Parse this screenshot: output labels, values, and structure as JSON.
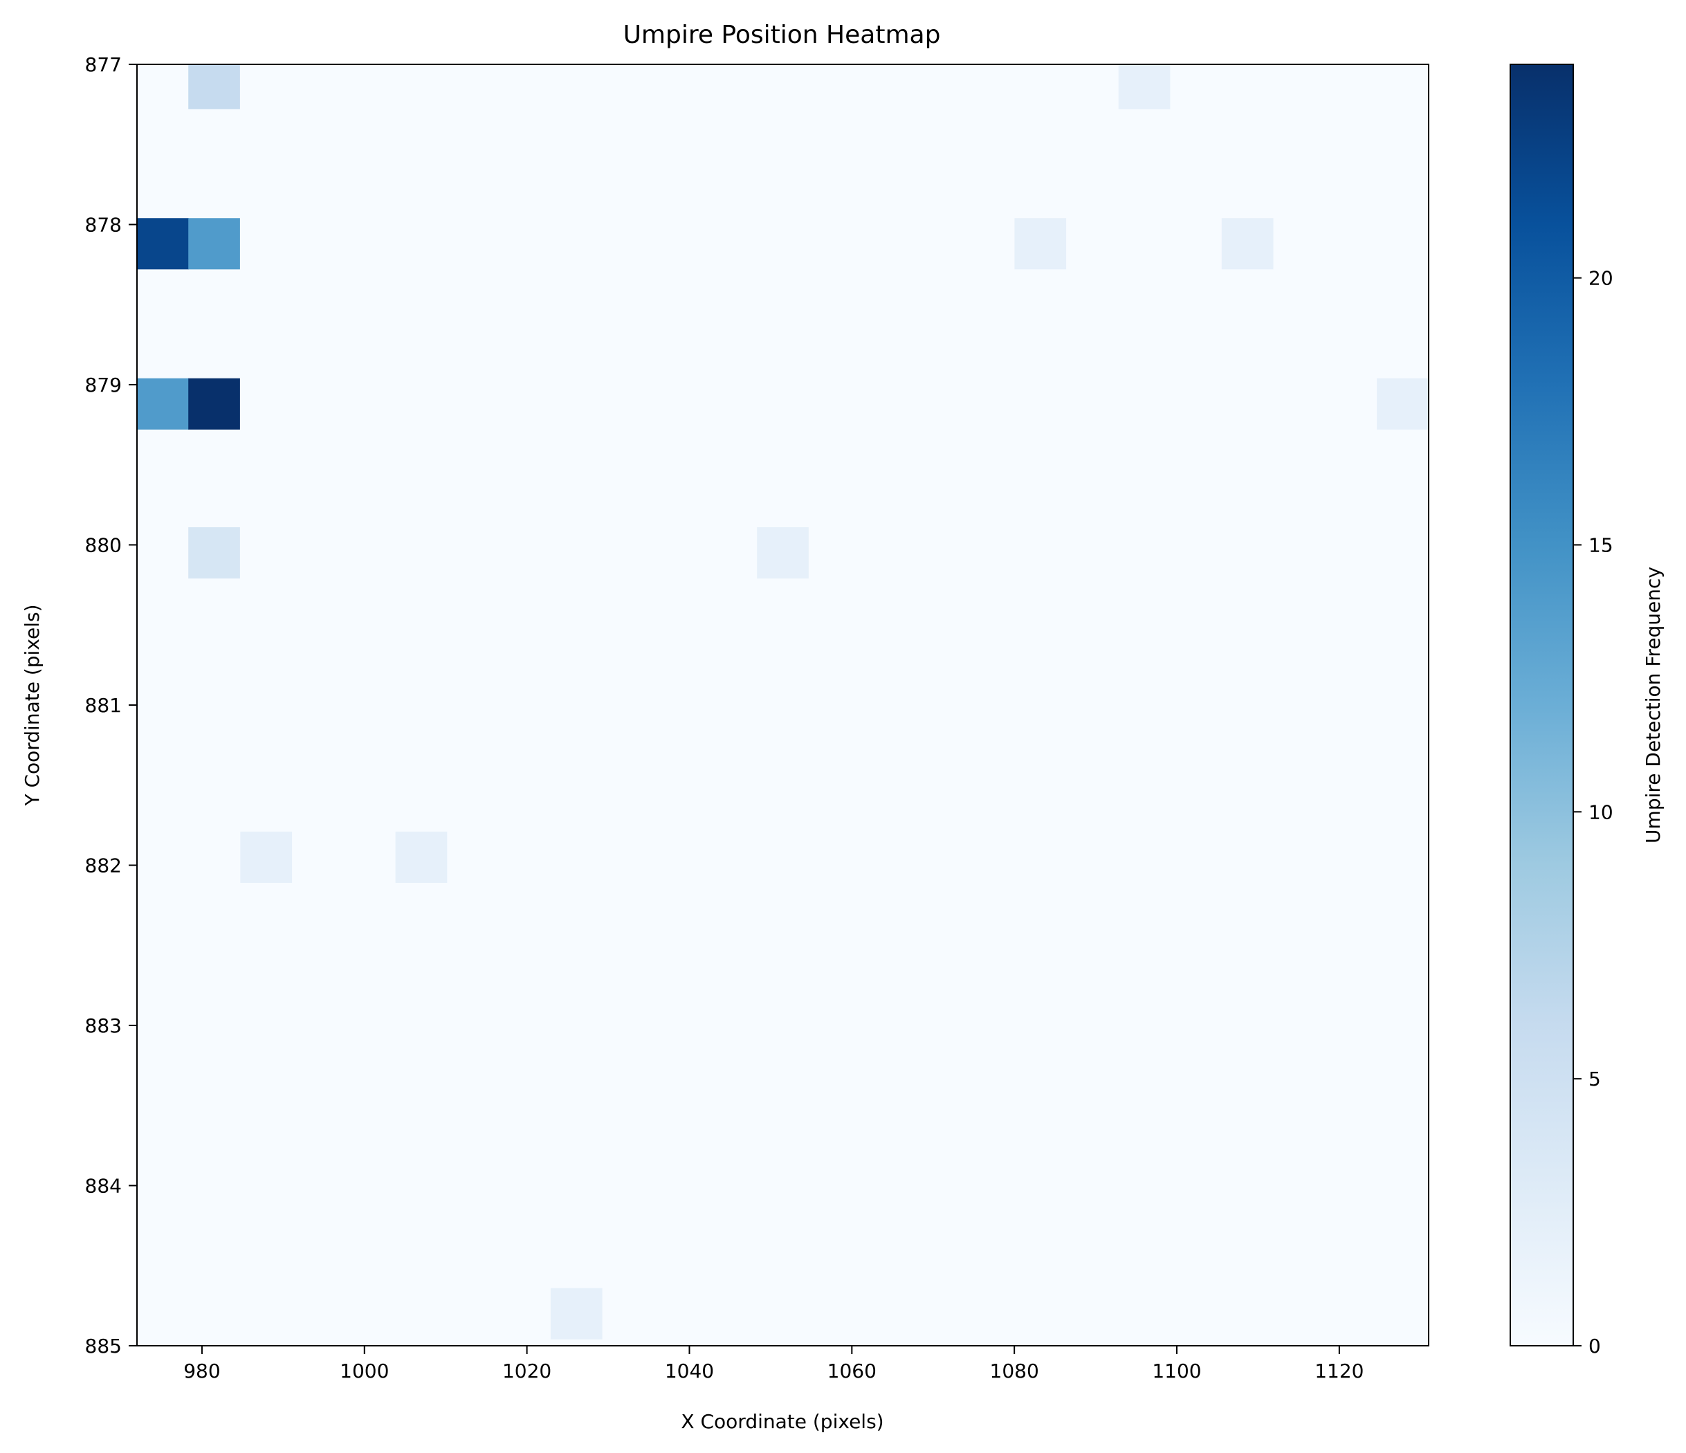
{
  "chart_data": {
    "type": "heatmap",
    "title": "Umpire Position Heatmap",
    "xlabel": "X Coordinate (pixels)",
    "ylabel": "Y Coordinate (pixels)",
    "colorbar_label": "Umpire Detection Frequency",
    "colormap": "Blues",
    "xlim": [
      972,
      1131
    ],
    "ylim": [
      877,
      885
    ],
    "x_ticks": [
      980,
      1000,
      1020,
      1040,
      1060,
      1080,
      1100,
      1120
    ],
    "y_ticks": [
      877,
      878,
      879,
      880,
      881,
      882,
      883,
      884,
      885
    ],
    "colorbar_range": [
      0,
      24
    ],
    "colorbar_ticks": [
      0,
      5,
      10,
      15,
      20
    ],
    "cell_width": 6.36,
    "cell_height": 0.32,
    "cells": [
      {
        "x": 981.5,
        "y": 877.12,
        "value": 6
      },
      {
        "x": 1096.0,
        "y": 877.12,
        "value": 2
      },
      {
        "x": 975.2,
        "y": 878.12,
        "value": 22
      },
      {
        "x": 981.5,
        "y": 878.12,
        "value": 14
      },
      {
        "x": 1083.2,
        "y": 878.12,
        "value": 2
      },
      {
        "x": 1108.7,
        "y": 878.12,
        "value": 2
      },
      {
        "x": 975.2,
        "y": 879.12,
        "value": 14
      },
      {
        "x": 981.5,
        "y": 879.12,
        "value": 24
      },
      {
        "x": 1127.8,
        "y": 879.12,
        "value": 2
      },
      {
        "x": 981.5,
        "y": 880.05,
        "value": 4
      },
      {
        "x": 1051.5,
        "y": 880.05,
        "value": 2
      },
      {
        "x": 987.9,
        "y": 881.95,
        "value": 2
      },
      {
        "x": 1007.0,
        "y": 881.95,
        "value": 2
      },
      {
        "x": 1026.1,
        "y": 884.8,
        "value": 2
      }
    ]
  }
}
